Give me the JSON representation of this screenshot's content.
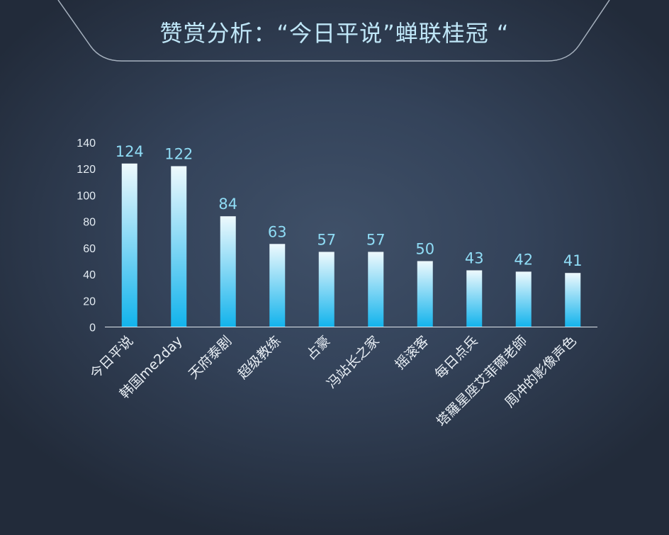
{
  "header": {
    "title": "赞赏分析：“今日平说”蝉联桂冠 “"
  },
  "chart_data": {
    "type": "bar",
    "title": "赞赏分析：“今日平说”蝉联桂冠 “",
    "categories": [
      "今日平说",
      "韩国me2day",
      "天府泰剧",
      "超级教练",
      "占豪",
      "冯站长之家",
      "摇滚客",
      "每日点兵",
      "塔羅星座艾菲爾老師",
      "周冲的影像声色"
    ],
    "values": [
      124,
      122,
      84,
      63,
      57,
      57,
      50,
      43,
      42,
      41
    ],
    "ylim": [
      0,
      140
    ],
    "yticks": [
      0,
      20,
      40,
      60,
      80,
      100,
      120,
      140
    ],
    "xlabel": "",
    "ylabel": "",
    "grid": false,
    "legend": "none",
    "colors": {
      "bar_top": "#eef9fd",
      "bar_bottom": "#12b3ec",
      "value_label": "#8fdcf5",
      "axis": "#dfe6ec"
    }
  }
}
